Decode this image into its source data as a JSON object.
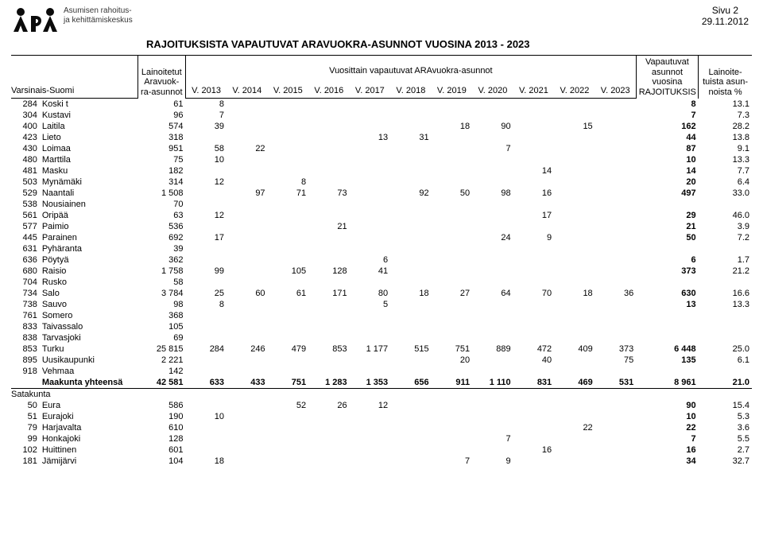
{
  "pageinfo": {
    "pagenum": "Sivu 2",
    "date": "29.11.2012"
  },
  "org": {
    "line1": "Asumisen rahoitus-",
    "line2": "ja kehittämiskeskus"
  },
  "title": "RAJOITUKSISTA VAPAUTUVAT ARAVUOKRA-ASUNNOT VUOSINA 2013 - 2023",
  "logo_color": "#0b0b0b",
  "headers": {
    "stock_hdr": "Lainoitetut\nAravuok-\nra-asunnot",
    "annual_hdr": "Vuosittain vapautuvat ARAvuokra-asunnot",
    "years": [
      "V. 2013",
      "V. 2014",
      "V. 2015",
      "V. 2016",
      "V. 2017",
      "V. 2018",
      "V. 2019",
      "V. 2020",
      "V. 2021",
      "V. 2022",
      "V. 2023"
    ],
    "vap_hdr": "Vapautuvat\nasunnot\nvuosina\nRAJOITUKSIS",
    "pct_hdr": "Lainoite-\ntuista asun-\nnoista %",
    "region1": "Varsinais-Suomi",
    "region2": "Satakunta",
    "totals_label": "Maakunta yhteensä"
  },
  "rows_varsinais": [
    {
      "code": "284",
      "name": "Koski t",
      "stock": "61",
      "y": [
        "8",
        "",
        "",
        "",
        "",
        "",
        "",
        "",
        "",
        "",
        ""
      ],
      "vap": "8",
      "pct": "13.1"
    },
    {
      "code": "304",
      "name": "Kustavi",
      "stock": "96",
      "y": [
        "7",
        "",
        "",
        "",
        "",
        "",
        "",
        "",
        "",
        "",
        ""
      ],
      "vap": "7",
      "pct": "7.3"
    },
    {
      "code": "400",
      "name": "Laitila",
      "stock": "574",
      "y": [
        "39",
        "",
        "",
        "",
        "",
        "",
        "18",
        "90",
        "",
        "15",
        ""
      ],
      "vap": "162",
      "pct": "28.2"
    },
    {
      "code": "423",
      "name": "Lieto",
      "stock": "318",
      "y": [
        "",
        "",
        "",
        "",
        "13",
        "31",
        "",
        "",
        "",
        "",
        ""
      ],
      "vap": "44",
      "pct": "13.8"
    },
    {
      "code": "430",
      "name": "Loimaa",
      "stock": "951",
      "y": [
        "58",
        "22",
        "",
        "",
        "",
        "",
        "",
        "7",
        "",
        "",
        ""
      ],
      "vap": "87",
      "pct": "9.1"
    },
    {
      "code": "480",
      "name": "Marttila",
      "stock": "75",
      "y": [
        "10",
        "",
        "",
        "",
        "",
        "",
        "",
        "",
        "",
        "",
        ""
      ],
      "vap": "10",
      "pct": "13.3"
    },
    {
      "code": "481",
      "name": "Masku",
      "stock": "182",
      "y": [
        "",
        "",
        "",
        "",
        "",
        "",
        "",
        "",
        "14",
        "",
        ""
      ],
      "vap": "14",
      "pct": "7.7"
    },
    {
      "code": "503",
      "name": "Mynämäki",
      "stock": "314",
      "y": [
        "12",
        "",
        "8",
        "",
        "",
        "",
        "",
        "",
        "",
        "",
        ""
      ],
      "vap": "20",
      "pct": "6.4"
    },
    {
      "code": "529",
      "name": "Naantali",
      "stock": "1 508",
      "y": [
        "",
        "97",
        "71",
        "73",
        "",
        "92",
        "50",
        "98",
        "16",
        "",
        ""
      ],
      "vap": "497",
      "pct": "33.0"
    },
    {
      "code": "538",
      "name": "Nousiainen",
      "stock": "70",
      "y": [
        "",
        "",
        "",
        "",
        "",
        "",
        "",
        "",
        "",
        "",
        ""
      ],
      "vap": "",
      "pct": ""
    },
    {
      "code": "561",
      "name": "Oripää",
      "stock": "63",
      "y": [
        "12",
        "",
        "",
        "",
        "",
        "",
        "",
        "",
        "17",
        "",
        ""
      ],
      "vap": "29",
      "pct": "46.0"
    },
    {
      "code": "577",
      "name": "Paimio",
      "stock": "536",
      "y": [
        "",
        "",
        "",
        "21",
        "",
        "",
        "",
        "",
        "",
        "",
        ""
      ],
      "vap": "21",
      "pct": "3.9"
    },
    {
      "code": "445",
      "name": "Parainen",
      "stock": "692",
      "y": [
        "17",
        "",
        "",
        "",
        "",
        "",
        "",
        "24",
        "9",
        "",
        ""
      ],
      "vap": "50",
      "pct": "7.2"
    },
    {
      "code": "631",
      "name": "Pyhäranta",
      "stock": "39",
      "y": [
        "",
        "",
        "",
        "",
        "",
        "",
        "",
        "",
        "",
        "",
        ""
      ],
      "vap": "",
      "pct": ""
    },
    {
      "code": "636",
      "name": "Pöytyä",
      "stock": "362",
      "y": [
        "",
        "",
        "",
        "",
        "6",
        "",
        "",
        "",
        "",
        "",
        ""
      ],
      "vap": "6",
      "pct": "1.7"
    },
    {
      "code": "680",
      "name": "Raisio",
      "stock": "1 758",
      "y": [
        "99",
        "",
        "105",
        "128",
        "41",
        "",
        "",
        "",
        "",
        "",
        ""
      ],
      "vap": "373",
      "pct": "21.2"
    },
    {
      "code": "704",
      "name": "Rusko",
      "stock": "58",
      "y": [
        "",
        "",
        "",
        "",
        "",
        "",
        "",
        "",
        "",
        "",
        ""
      ],
      "vap": "",
      "pct": ""
    },
    {
      "code": "734",
      "name": "Salo",
      "stock": "3 784",
      "y": [
        "25",
        "60",
        "61",
        "171",
        "80",
        "18",
        "27",
        "64",
        "70",
        "18",
        "36"
      ],
      "vap": "630",
      "pct": "16.6"
    },
    {
      "code": "738",
      "name": "Sauvo",
      "stock": "98",
      "y": [
        "8",
        "",
        "",
        "",
        "5",
        "",
        "",
        "",
        "",
        "",
        ""
      ],
      "vap": "13",
      "pct": "13.3"
    },
    {
      "code": "761",
      "name": "Somero",
      "stock": "368",
      "y": [
        "",
        "",
        "",
        "",
        "",
        "",
        "",
        "",
        "",
        "",
        ""
      ],
      "vap": "",
      "pct": ""
    },
    {
      "code": "833",
      "name": "Taivassalo",
      "stock": "105",
      "y": [
        "",
        "",
        "",
        "",
        "",
        "",
        "",
        "",
        "",
        "",
        ""
      ],
      "vap": "",
      "pct": ""
    },
    {
      "code": "838",
      "name": "Tarvasjoki",
      "stock": "69",
      "y": [
        "",
        "",
        "",
        "",
        "",
        "",
        "",
        "",
        "",
        "",
        ""
      ],
      "vap": "",
      "pct": ""
    },
    {
      "code": "853",
      "name": "Turku",
      "stock": "25 815",
      "y": [
        "284",
        "246",
        "479",
        "853",
        "1 177",
        "515",
        "751",
        "889",
        "472",
        "409",
        "373"
      ],
      "vap": "6 448",
      "pct": "25.0"
    },
    {
      "code": "895",
      "name": "Uusikaupunki",
      "stock": "2 221",
      "y": [
        "",
        "",
        "",
        "",
        "",
        "",
        "20",
        "",
        "40",
        "",
        "75"
      ],
      "vap": "135",
      "pct": "6.1"
    },
    {
      "code": "918",
      "name": "Vehmaa",
      "stock": "142",
      "y": [
        "",
        "",
        "",
        "",
        "",
        "",
        "",
        "",
        "",
        "",
        ""
      ],
      "vap": "",
      "pct": ""
    }
  ],
  "totals_varsinais": {
    "stock": "42 581",
    "y": [
      "633",
      "433",
      "751",
      "1 283",
      "1 353",
      "656",
      "911",
      "1 110",
      "831",
      "469",
      "531"
    ],
    "vap": "8 961",
    "pct": "21.0"
  },
  "rows_satakunta": [
    {
      "code": "50",
      "name": "Eura",
      "stock": "586",
      "y": [
        "",
        "",
        "52",
        "26",
        "12",
        "",
        "",
        "",
        "",
        "",
        ""
      ],
      "vap": "90",
      "pct": "15.4"
    },
    {
      "code": "51",
      "name": "Eurajoki",
      "stock": "190",
      "y": [
        "10",
        "",
        "",
        "",
        "",
        "",
        "",
        "",
        "",
        "",
        ""
      ],
      "vap": "10",
      "pct": "5.3"
    },
    {
      "code": "79",
      "name": "Harjavalta",
      "stock": "610",
      "y": [
        "",
        "",
        "",
        "",
        "",
        "",
        "",
        "",
        "",
        "22",
        ""
      ],
      "vap": "22",
      "pct": "3.6"
    },
    {
      "code": "99",
      "name": "Honkajoki",
      "stock": "128",
      "y": [
        "",
        "",
        "",
        "",
        "",
        "",
        "",
        "7",
        "",
        "",
        ""
      ],
      "vap": "7",
      "pct": "5.5"
    },
    {
      "code": "102",
      "name": "Huittinen",
      "stock": "601",
      "y": [
        "",
        "",
        "",
        "",
        "",
        "",
        "",
        "",
        "16",
        "",
        ""
      ],
      "vap": "16",
      "pct": "2.7"
    },
    {
      "code": "181",
      "name": "Jämijärvi",
      "stock": "104",
      "y": [
        "18",
        "",
        "",
        "",
        "",
        "",
        "7",
        "9",
        "",
        "",
        ""
      ],
      "vap": "34",
      "pct": "32.7"
    }
  ]
}
